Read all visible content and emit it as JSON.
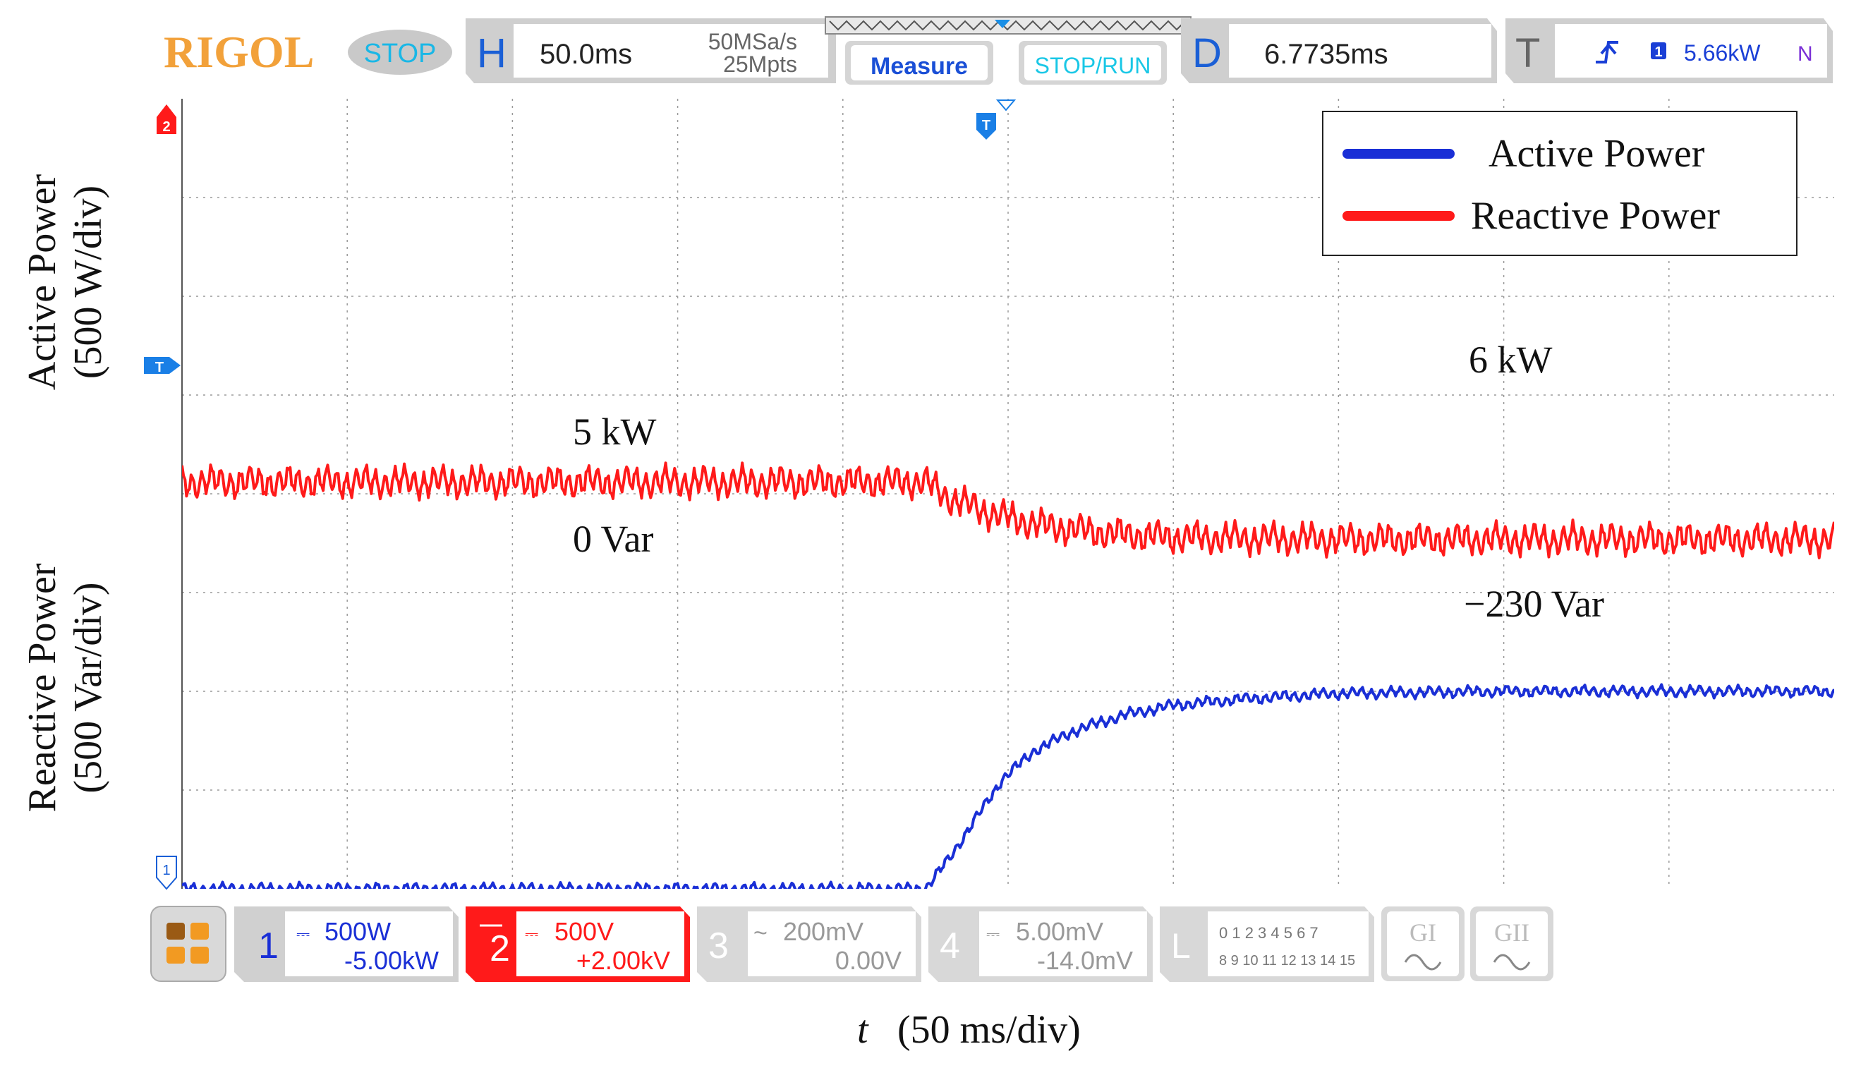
{
  "scope": {
    "brand": "RIGOL",
    "run_state": "STOP",
    "h_label": "H",
    "timebase": "50.0ms",
    "sample_rate": "50MSa/s",
    "memory_depth": "25Mpts",
    "measure_label": "Measure",
    "stoprun_label": "STOP/RUN",
    "d_label": "D",
    "delay": "6.7735ms",
    "t_label": "T",
    "trigger_source": "1",
    "trigger_level": "5.66kW",
    "trigger_mode": "N",
    "trigger_marker": "T",
    "ch2_marker": "2",
    "ch1_marker": "1",
    "left_trigger_marker": "T"
  },
  "channels": [
    {
      "num": "1",
      "scale": "500W",
      "offset": "-5.00kW",
      "active": true,
      "color": "#1a2fd6"
    },
    {
      "num": "2",
      "scale": "500V",
      "offset": "+2.00kV",
      "active": true,
      "color": "#ff1a1a"
    },
    {
      "num": "3",
      "scale": "200mV",
      "offset": "0.00V",
      "active": false,
      "color": "#bbbbbb"
    },
    {
      "num": "4",
      "scale": "5.00mV",
      "offset": "-14.0mV",
      "active": false,
      "color": "#bbbbbb"
    }
  ],
  "logic": {
    "label": "L",
    "row1": "0 1 2 3   4 5 6 7",
    "row2": "8 9 10 11  12 13 14 15",
    "g1": "GI",
    "g2": "GII"
  },
  "labels": {
    "y_upper_1": "Active Power",
    "y_upper_2": "(500 W/div)",
    "y_lower_1": "Reactive Power",
    "y_lower_2": "(500 Var/div)",
    "x_label_t": "t",
    "x_label_rest": "(50 ms/div)"
  },
  "colors": {
    "active": "#1a2fd6",
    "reactive": "#ff1a1a",
    "rigol": "#f2a13a",
    "cyan": "#19b7e6",
    "blue_text": "#1a5fd6"
  },
  "chart_data": {
    "type": "line",
    "xlabel": "t (50 ms/div)",
    "x_unit": "ms",
    "xlim": [
      0,
      500
    ],
    "grid": true,
    "legend_position": "top-right",
    "series": [
      {
        "name": "Active Power",
        "unit": "W",
        "scale": "500 W/div",
        "ylim": [
          5000,
          9000
        ],
        "x": [
          0,
          225,
          232,
          240,
          248,
          258,
          270,
          285,
          300,
          320,
          350,
          400,
          450,
          500
        ],
        "values": [
          5000,
          5000,
          5150,
          5350,
          5550,
          5700,
          5800,
          5880,
          5930,
          5960,
          5990,
          6000,
          6000,
          6000
        ],
        "ripple": 25
      },
      {
        "name": "Reactive Power",
        "unit": "Var",
        "scale": "500 Var/div",
        "ylim": [
          -2000,
          2000
        ],
        "x": [
          0,
          225,
          232,
          245,
          260,
          280,
          300,
          350,
          400,
          450,
          500
        ],
        "values": [
          60,
          60,
          -20,
          -100,
          -160,
          -200,
          -220,
          -230,
          -230,
          -230,
          -230
        ],
        "ripple": 70
      }
    ],
    "annotations": [
      "5 kW",
      "0 Var",
      "6 kW",
      "−230 Var"
    ],
    "legend": [
      "Active Power",
      "Reactive Power"
    ]
  }
}
